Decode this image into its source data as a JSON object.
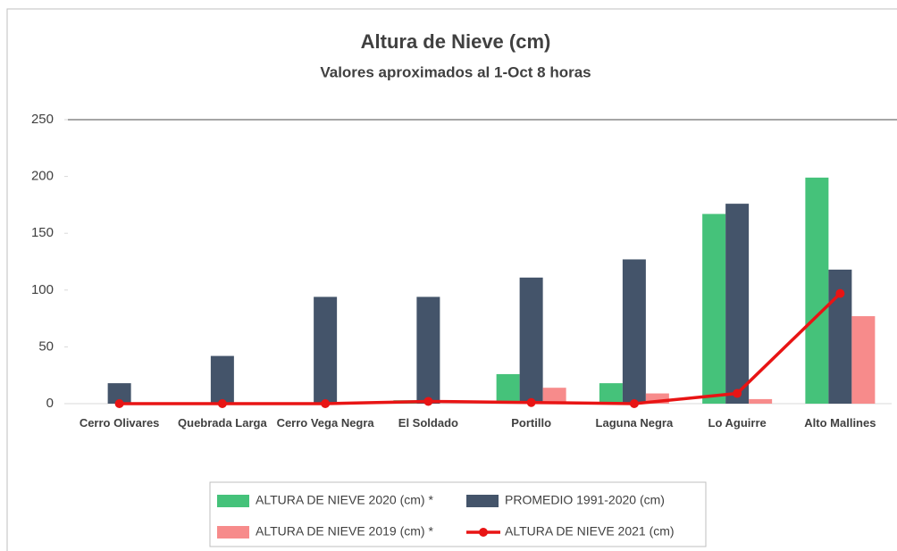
{
  "chart_data": {
    "type": "bar",
    "title": "Altura de Nieve (cm)",
    "subtitle": "Valores aproximados al 1-Oct 8 horas",
    "categories": [
      "Cerro Olivares",
      "Quebrada Larga",
      "Cerro Vega Negra",
      "El Soldado",
      "Portillo",
      "Laguna Negra",
      "Lo Aguirre",
      "Alto Mallines"
    ],
    "series": [
      {
        "name": "ALTURA DE NIEVE 2020 (cm) *",
        "color": "#45c27a",
        "type": "bar",
        "values": [
          0,
          0,
          0,
          3,
          26,
          18,
          167,
          199
        ]
      },
      {
        "name": "PROMEDIO 1991-2020 (cm)",
        "color": "#44546a",
        "type": "bar",
        "values": [
          18,
          42,
          94,
          94,
          111,
          127,
          176,
          118
        ]
      },
      {
        "name": "ALTURA DE NIEVE 2019 (cm) *",
        "color": "#f78b8b",
        "type": "bar",
        "values": [
          0,
          0,
          0,
          0,
          14,
          9,
          4,
          77
        ]
      },
      {
        "name": "ALTURA DE NIEVE 2021 (cm)",
        "color": "#e81414",
        "type": "line",
        "values": [
          0,
          0,
          0,
          2,
          1,
          0,
          9,
          97
        ]
      }
    ],
    "ylim": [
      0,
      250
    ],
    "yticks": [
      0,
      50,
      100,
      150,
      200,
      250
    ],
    "legend": "bottom"
  }
}
